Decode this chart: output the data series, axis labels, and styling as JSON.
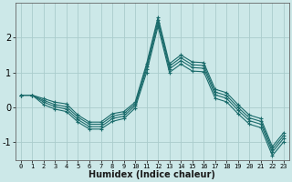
{
  "xlabel": "Humidex (Indice chaleur)",
  "bg_color": "#cce8e8",
  "grid_color": "#aacccc",
  "line_color": "#1a6b6b",
  "x": [
    0,
    1,
    2,
    3,
    4,
    5,
    6,
    7,
    8,
    9,
    10,
    11,
    12,
    13,
    14,
    15,
    16,
    17,
    18,
    19,
    20,
    21,
    22,
    23
  ],
  "series": [
    [
      0.35,
      0.35,
      0.25,
      0.15,
      0.1,
      -0.22,
      -0.42,
      -0.42,
      -0.18,
      -0.12,
      0.15,
      1.25,
      2.58,
      1.25,
      1.5,
      1.3,
      1.28,
      0.52,
      0.42,
      0.08,
      -0.22,
      -0.32,
      -1.12,
      -0.72
    ],
    [
      0.35,
      0.35,
      0.2,
      0.08,
      0.02,
      -0.28,
      -0.48,
      -0.48,
      -0.25,
      -0.18,
      0.1,
      1.18,
      2.5,
      1.18,
      1.42,
      1.22,
      1.2,
      0.44,
      0.34,
      0.0,
      -0.3,
      -0.4,
      -1.2,
      -0.8
    ],
    [
      0.35,
      0.35,
      0.15,
      0.02,
      -0.05,
      -0.35,
      -0.55,
      -0.55,
      -0.32,
      -0.25,
      0.05,
      1.1,
      2.42,
      1.1,
      1.34,
      1.14,
      1.12,
      0.36,
      0.26,
      -0.08,
      -0.38,
      -0.48,
      -1.28,
      -0.88
    ],
    [
      0.35,
      0.35,
      0.08,
      -0.05,
      -0.12,
      -0.42,
      -0.62,
      -0.62,
      -0.4,
      -0.32,
      -0.02,
      1.0,
      2.32,
      1.0,
      1.24,
      1.04,
      1.02,
      0.26,
      0.16,
      -0.18,
      -0.48,
      -0.58,
      -1.38,
      -0.98
    ]
  ],
  "ylim": [
    -1.5,
    3.0
  ],
  "yticks": [
    -1,
    0,
    1,
    2
  ],
  "xlim": [
    -0.5,
    23.5
  ],
  "xticks": [
    0,
    1,
    2,
    3,
    4,
    5,
    6,
    7,
    8,
    9,
    10,
    11,
    12,
    13,
    14,
    15,
    16,
    17,
    18,
    19,
    20,
    21,
    22,
    23
  ]
}
